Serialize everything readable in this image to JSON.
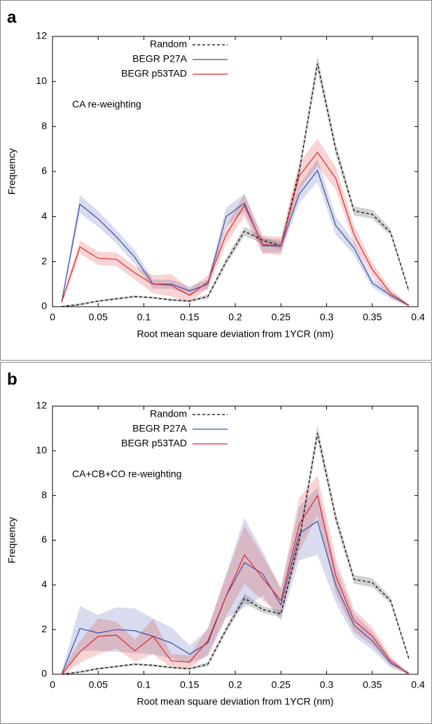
{
  "chart_data": [
    {
      "type": "line",
      "panel_label": "a",
      "annotation": "CA re-weighting",
      "xlabel": "Root mean square deviation from 1YCR (nm)",
      "ylabel": "Frequency",
      "xlim": [
        0,
        0.4
      ],
      "ylim": [
        0,
        12
      ],
      "xticks": [
        0,
        0.05,
        0.1,
        0.15,
        0.2,
        0.25,
        0.3,
        0.35,
        0.4
      ],
      "yticks": [
        0,
        2,
        4,
        6,
        8,
        10,
        12
      ],
      "legend": "upper left",
      "x": [
        0.01,
        0.03,
        0.05,
        0.07,
        0.09,
        0.11,
        0.13,
        0.15,
        0.17,
        0.19,
        0.21,
        0.23,
        0.25,
        0.27,
        0.29,
        0.31,
        0.33,
        0.35,
        0.37,
        0.39
      ],
      "series": [
        {
          "name": "Random",
          "color": "#000000",
          "dashed": true,
          "values": [
            0,
            0.1,
            0.25,
            0.35,
            0.45,
            0.4,
            0.3,
            0.25,
            0.45,
            2.0,
            3.35,
            2.95,
            2.7,
            6.0,
            10.8,
            7.0,
            4.25,
            4.1,
            3.3,
            0.7
          ],
          "errors": [
            0.05,
            0.05,
            0.05,
            0.05,
            0.05,
            0.05,
            0.05,
            0.05,
            0.1,
            0.15,
            0.2,
            0.15,
            0.15,
            0.25,
            0.35,
            0.25,
            0.2,
            0.2,
            0.15,
            0.1
          ]
        },
        {
          "name": "BEGR P27A",
          "color": "#3a4fa8",
          "values": [
            0.2,
            4.55,
            3.9,
            3.1,
            2.2,
            1.0,
            1.0,
            0.7,
            1.0,
            4.0,
            4.6,
            2.7,
            2.7,
            5.0,
            6.05,
            3.6,
            2.6,
            1.05,
            0.5,
            0.05
          ],
          "errors": [
            0.1,
            0.4,
            0.35,
            0.3,
            0.3,
            0.2,
            0.2,
            0.2,
            0.2,
            0.4,
            0.4,
            0.3,
            0.3,
            0.4,
            0.5,
            0.4,
            0.3,
            0.2,
            0.15,
            0.05
          ]
        },
        {
          "name": "BEGR p53TAD",
          "color": "#e0262a",
          "values": [
            0.2,
            2.65,
            2.15,
            2.1,
            1.5,
            1.0,
            0.95,
            0.5,
            1.1,
            3.2,
            4.5,
            2.75,
            2.7,
            5.8,
            6.85,
            5.7,
            3.2,
            1.65,
            0.6,
            0.05
          ],
          "errors": [
            0.1,
            0.3,
            0.3,
            0.3,
            0.3,
            0.4,
            0.5,
            0.3,
            0.3,
            0.4,
            0.5,
            0.4,
            0.4,
            0.6,
            0.6,
            0.5,
            0.4,
            0.3,
            0.2,
            0.05
          ]
        }
      ]
    },
    {
      "type": "line",
      "panel_label": "b",
      "annotation": "CA+CB+CO re-weighting",
      "xlabel": "Root mean square deviation from 1YCR (nm)",
      "ylabel": "Frequency",
      "xlim": [
        0,
        0.4
      ],
      "ylim": [
        0,
        12
      ],
      "xticks": [
        0,
        0.05,
        0.1,
        0.15,
        0.2,
        0.25,
        0.3,
        0.35,
        0.4
      ],
      "yticks": [
        0,
        2,
        4,
        6,
        8,
        10,
        12
      ],
      "legend": "upper left",
      "x": [
        0.01,
        0.03,
        0.05,
        0.07,
        0.09,
        0.11,
        0.13,
        0.15,
        0.17,
        0.19,
        0.21,
        0.23,
        0.25,
        0.27,
        0.29,
        0.31,
        0.33,
        0.35,
        0.37,
        0.39
      ],
      "series": [
        {
          "name": "Random",
          "color": "#000000",
          "dashed": true,
          "values": [
            0,
            0.1,
            0.25,
            0.35,
            0.45,
            0.4,
            0.3,
            0.25,
            0.45,
            2.0,
            3.4,
            2.9,
            2.7,
            6.0,
            10.8,
            7.0,
            4.25,
            4.1,
            3.3,
            0.7
          ],
          "errors": [
            0.05,
            0.05,
            0.05,
            0.05,
            0.05,
            0.05,
            0.05,
            0.05,
            0.1,
            0.15,
            0.2,
            0.15,
            0.15,
            0.25,
            0.35,
            0.25,
            0.2,
            0.2,
            0.15,
            0.1
          ]
        },
        {
          "name": "BEGR P27A",
          "color": "#3a4fa8",
          "values": [
            0,
            2.05,
            1.85,
            2.0,
            1.95,
            1.7,
            1.4,
            0.9,
            1.4,
            3.5,
            5.0,
            4.5,
            3.1,
            6.3,
            6.85,
            4.0,
            2.2,
            1.5,
            0.5,
            0.05
          ],
          "errors": [
            0.1,
            1.0,
            0.8,
            1.0,
            1.0,
            0.8,
            0.7,
            0.4,
            0.6,
            1.0,
            2.0,
            1.0,
            0.7,
            1.2,
            1.5,
            0.8,
            0.5,
            0.4,
            0.2,
            0.05
          ]
        },
        {
          "name": "BEGR p53TAD",
          "color": "#e0262a",
          "values": [
            0,
            1.0,
            1.7,
            1.75,
            1.05,
            1.7,
            0.6,
            0.55,
            1.5,
            3.5,
            5.35,
            4.3,
            3.3,
            6.7,
            8.0,
            4.4,
            2.4,
            1.7,
            0.6,
            0.0
          ],
          "errors": [
            0.1,
            0.5,
            0.8,
            0.6,
            0.5,
            0.8,
            0.3,
            0.3,
            0.6,
            0.9,
            1.3,
            1.0,
            0.6,
            1.2,
            0.9,
            0.8,
            0.5,
            0.4,
            0.2,
            0.05
          ]
        }
      ]
    }
  ]
}
